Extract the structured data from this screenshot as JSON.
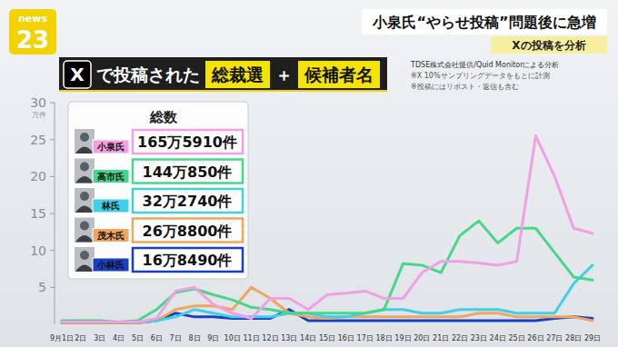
{
  "chart_data": {
    "type": "line",
    "logo": [
      "news",
      "23"
    ],
    "headline": "小泉氏“やらせ投稿”問題後に急増",
    "headline_tag": "Xの投稿を分析",
    "title_parts": [
      "X",
      "で投稿された",
      "総裁選",
      "＋",
      "候補者名"
    ],
    "notes": [
      "TDSE株式会社提供/Quid Monitorによる分析",
      "※X 10%サンプリングデータをもとに計測",
      "※投稿にはリポスト・返信も含む"
    ],
    "legend_title": "総数",
    "legend": "top-left",
    "y_label": "万件",
    "ylim": [
      0,
      30
    ],
    "yticks": [
      5,
      10,
      15,
      20,
      25,
      30
    ],
    "grid": false,
    "categories": [
      "9月1日",
      "2日",
      "3日",
      "4日",
      "5日",
      "6日",
      "7日",
      "8日",
      "9日",
      "10日",
      "11日",
      "12日",
      "13日",
      "14日",
      "15日",
      "16日",
      "17日",
      "18日",
      "19日",
      "20日",
      "21日",
      "22日",
      "23日",
      "24日",
      "25日",
      "26日",
      "27日",
      "28日",
      "29日"
    ],
    "series": [
      {
        "name": "小泉氏",
        "total": "165万5910件",
        "color": "#f29fe3",
        "values": [
          0.3,
          0.3,
          0.3,
          0.3,
          0.3,
          0.8,
          4.5,
          5.0,
          2.7,
          1.5,
          0.8,
          3.5,
          3.5,
          2.0,
          4.0,
          4.2,
          4.5,
          3.5,
          3.5,
          7.0,
          8.5,
          8.5,
          8.3,
          8.0,
          8.5,
          25.5,
          20.0,
          13.0,
          12.3
        ]
      },
      {
        "name": "高市氏",
        "total": "144万850件",
        "color": "#45d88a",
        "values": [
          0.5,
          0.5,
          0.5,
          0.3,
          0.5,
          2.0,
          4.3,
          4.8,
          4.0,
          3.3,
          2.3,
          2.0,
          1.5,
          1.5,
          1.5,
          1.5,
          1.5,
          2.0,
          8.2,
          8.0,
          7.0,
          12.0,
          14.0,
          11.0,
          13.0,
          13.0,
          9.7,
          6.4,
          6.0
        ]
      },
      {
        "name": "林氏",
        "total": "32万2740件",
        "color": "#3fcfe6",
        "values": [
          0.3,
          0.3,
          0.3,
          0.3,
          0.3,
          0.5,
          1.0,
          2.0,
          1.5,
          1.0,
          1.0,
          1.0,
          1.5,
          1.5,
          1.0,
          1.0,
          1.5,
          2.0,
          2.0,
          1.5,
          1.5,
          2.0,
          2.0,
          2.0,
          1.5,
          1.5,
          1.5,
          5.5,
          8.0
        ]
      },
      {
        "name": "茂木氏",
        "total": "26万8800件",
        "color": "#f2a55c",
        "values": [
          0.2,
          0.2,
          0.2,
          0.2,
          0.2,
          0.5,
          2.0,
          2.5,
          2.5,
          2.0,
          5.0,
          3.5,
          1.5,
          1.0,
          0.8,
          1.0,
          1.0,
          1.0,
          1.0,
          1.0,
          1.0,
          1.0,
          1.5,
          1.5,
          1.0,
          1.0,
          1.0,
          1.0,
          0.5
        ]
      },
      {
        "name": "小林氏",
        "total": "16万8490件",
        "color": "#1a3fc4",
        "values": [
          0.2,
          0.2,
          0.2,
          0.2,
          0.2,
          0.5,
          1.5,
          1.0,
          1.0,
          0.8,
          0.8,
          0.8,
          2.0,
          0.5,
          0.5,
          0.5,
          0.5,
          0.5,
          0.5,
          0.5,
          0.5,
          0.5,
          0.5,
          0.5,
          0.5,
          0.5,
          0.8,
          1.0,
          0.8
        ]
      }
    ]
  }
}
